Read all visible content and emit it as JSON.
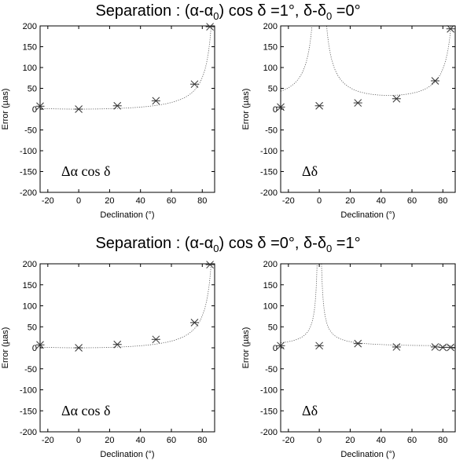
{
  "figure_titles": [
    {
      "prefix": "Separation : (α-α",
      "sub1": "0",
      "mid": ") cos δ =1°, δ-δ",
      "sub2": "0",
      "suffix": " =0°"
    },
    {
      "prefix": "Separation : (α-α",
      "sub1": "0",
      "mid": ") cos δ =0°, δ-δ",
      "sub2": "0",
      "suffix": " =1°"
    }
  ],
  "chart_data": [
    {
      "type": "scatter",
      "title": "",
      "panel_label": "Δα cos δ",
      "xlabel": "Declination (°)",
      "ylabel": "Error (µas)",
      "xlim": [
        -25,
        88
      ],
      "ylim": [
        -200,
        200
      ],
      "xticks": [
        -20,
        0,
        20,
        40,
        60,
        80
      ],
      "yticks": [
        -200,
        -150,
        -100,
        -50,
        0,
        50,
        100,
        150,
        200
      ],
      "grid": false,
      "points": {
        "x": [
          -25,
          0,
          25,
          50,
          75,
          85
        ],
        "y": [
          7,
          0,
          8,
          20,
          60,
          198
        ]
      },
      "curve_model": "sec",
      "curve_base": 16,
      "curve_offset": -16
    },
    {
      "type": "scatter",
      "title": "",
      "panel_label": "Δδ",
      "xlabel": "Declination (°)",
      "ylabel": "Error (µas)",
      "xlim": [
        -25,
        88
      ],
      "ylim": [
        -200,
        200
      ],
      "xticks": [
        -20,
        0,
        20,
        40,
        60,
        80
      ],
      "yticks": [
        -200,
        -150,
        -100,
        -50,
        0,
        50,
        100,
        150,
        200
      ],
      "grid": false,
      "points": {
        "x": [
          -25,
          0,
          25,
          50,
          75,
          85
        ],
        "y": [
          5,
          8,
          15,
          25,
          68,
          193
        ]
      },
      "curve_model": "sec_csc",
      "curve_base": 16.5,
      "curve_offset": 0
    },
    {
      "type": "scatter",
      "title": "",
      "panel_label": "Δα cos δ",
      "xlabel": "Declination (°)",
      "ylabel": "Error (µas)",
      "xlim": [
        -25,
        88
      ],
      "ylim": [
        -200,
        200
      ],
      "xticks": [
        -20,
        0,
        20,
        40,
        60,
        80
      ],
      "yticks": [
        -200,
        -150,
        -100,
        -50,
        0,
        50,
        100,
        150,
        200
      ],
      "grid": false,
      "points": {
        "x": [
          -25,
          0,
          25,
          50,
          75,
          85
        ],
        "y": [
          7,
          0,
          8,
          20,
          60,
          198
        ]
      },
      "curve_model": "sec",
      "curve_base": 16,
      "curve_offset": -16
    },
    {
      "type": "scatter",
      "title": "",
      "panel_label": "Δδ",
      "xlabel": "Declination (°)",
      "ylabel": "Error (µas)",
      "xlim": [
        -25,
        88
      ],
      "ylim": [
        -200,
        200
      ],
      "xticks": [
        -20,
        0,
        20,
        40,
        60,
        80
      ],
      "yticks": [
        -200,
        -150,
        -100,
        -50,
        0,
        50,
        100,
        150,
        200
      ],
      "grid": false,
      "points": {
        "x": [
          -25,
          0,
          25,
          50,
          75,
          80,
          85
        ],
        "y": [
          5,
          5,
          10,
          2,
          2,
          1,
          1
        ]
      },
      "curve_model": "csc",
      "curve_base": 5,
      "curve_offset": 0
    }
  ]
}
